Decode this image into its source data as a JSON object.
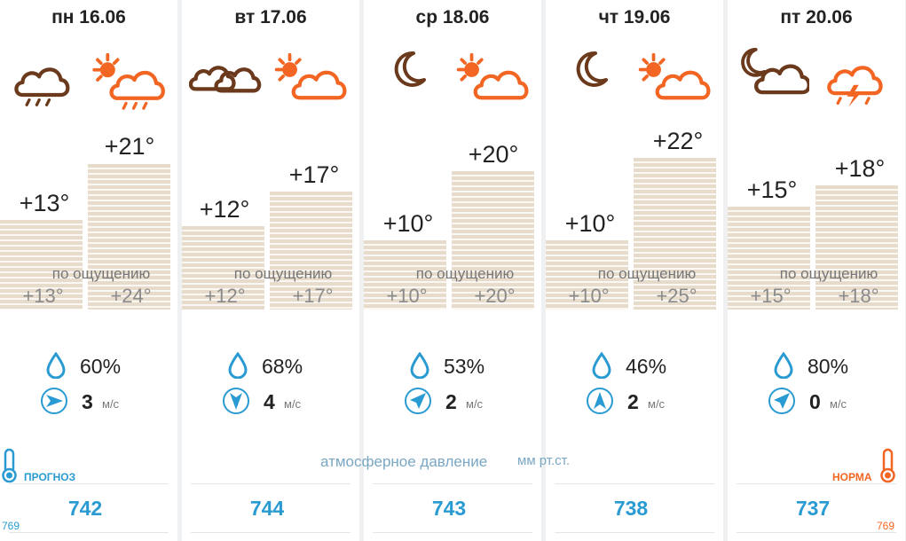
{
  "days": [
    {
      "date": "пн 16.06",
      "night_icon": "cloud-rain-icon",
      "day_icon": "sun-cloud-rain-icon",
      "night_temp": "+13°",
      "day_temp": "+21°",
      "night_feel": "+13°",
      "day_feel": "+24°",
      "humidity": "60%",
      "wind_speed": "3",
      "wind_icon": "wind-direction-east-icon",
      "pressure": "742"
    },
    {
      "date": "вт 17.06",
      "night_icon": "cloudy-icon",
      "day_icon": "sun-cloud-icon",
      "night_temp": "+12°",
      "day_temp": "+17°",
      "night_feel": "+12°",
      "day_feel": "+17°",
      "humidity": "68%",
      "wind_speed": "4",
      "wind_icon": "wind-direction-south-icon",
      "pressure": "744"
    },
    {
      "date": "ср 18.06",
      "night_icon": "moon-icon",
      "day_icon": "sun-cloud-icon",
      "night_temp": "+10°",
      "day_temp": "+20°",
      "night_feel": "+10°",
      "day_feel": "+20°",
      "humidity": "53%",
      "wind_speed": "2",
      "wind_icon": "wind-direction-northeast-icon",
      "pressure": "743"
    },
    {
      "date": "чт 19.06",
      "night_icon": "moon-icon",
      "day_icon": "sun-cloud-icon",
      "night_temp": "+10°",
      "day_temp": "+22°",
      "night_feel": "+10°",
      "day_feel": "+25°",
      "humidity": "46%",
      "wind_speed": "2",
      "wind_icon": "wind-direction-north-icon",
      "pressure": "738"
    },
    {
      "date": "пт 20.06",
      "night_icon": "moon-cloud-icon",
      "day_icon": "cloud-thunderstorm-icon",
      "night_temp": "+15°",
      "day_temp": "+18°",
      "night_feel": "+15°",
      "day_feel": "+18°",
      "humidity": "80%",
      "wind_speed": "0",
      "wind_icon": "wind-direction-northeast-icon",
      "pressure": "737"
    }
  ],
  "labels": {
    "feels_like": "по ощущению",
    "wind_unit": "м/с",
    "pressure_title": "атмосферное давление",
    "pressure_unit": "мм рт.ст.",
    "forecast": "ПРОГНОЗ",
    "norm": "НОРМА",
    "norm_left": "769",
    "norm_right": "769"
  },
  "colors": {
    "brown": "#6b3a1c",
    "orange": "#f26522",
    "blue": "#2a9bd2",
    "bar": "#e7dccb"
  }
}
